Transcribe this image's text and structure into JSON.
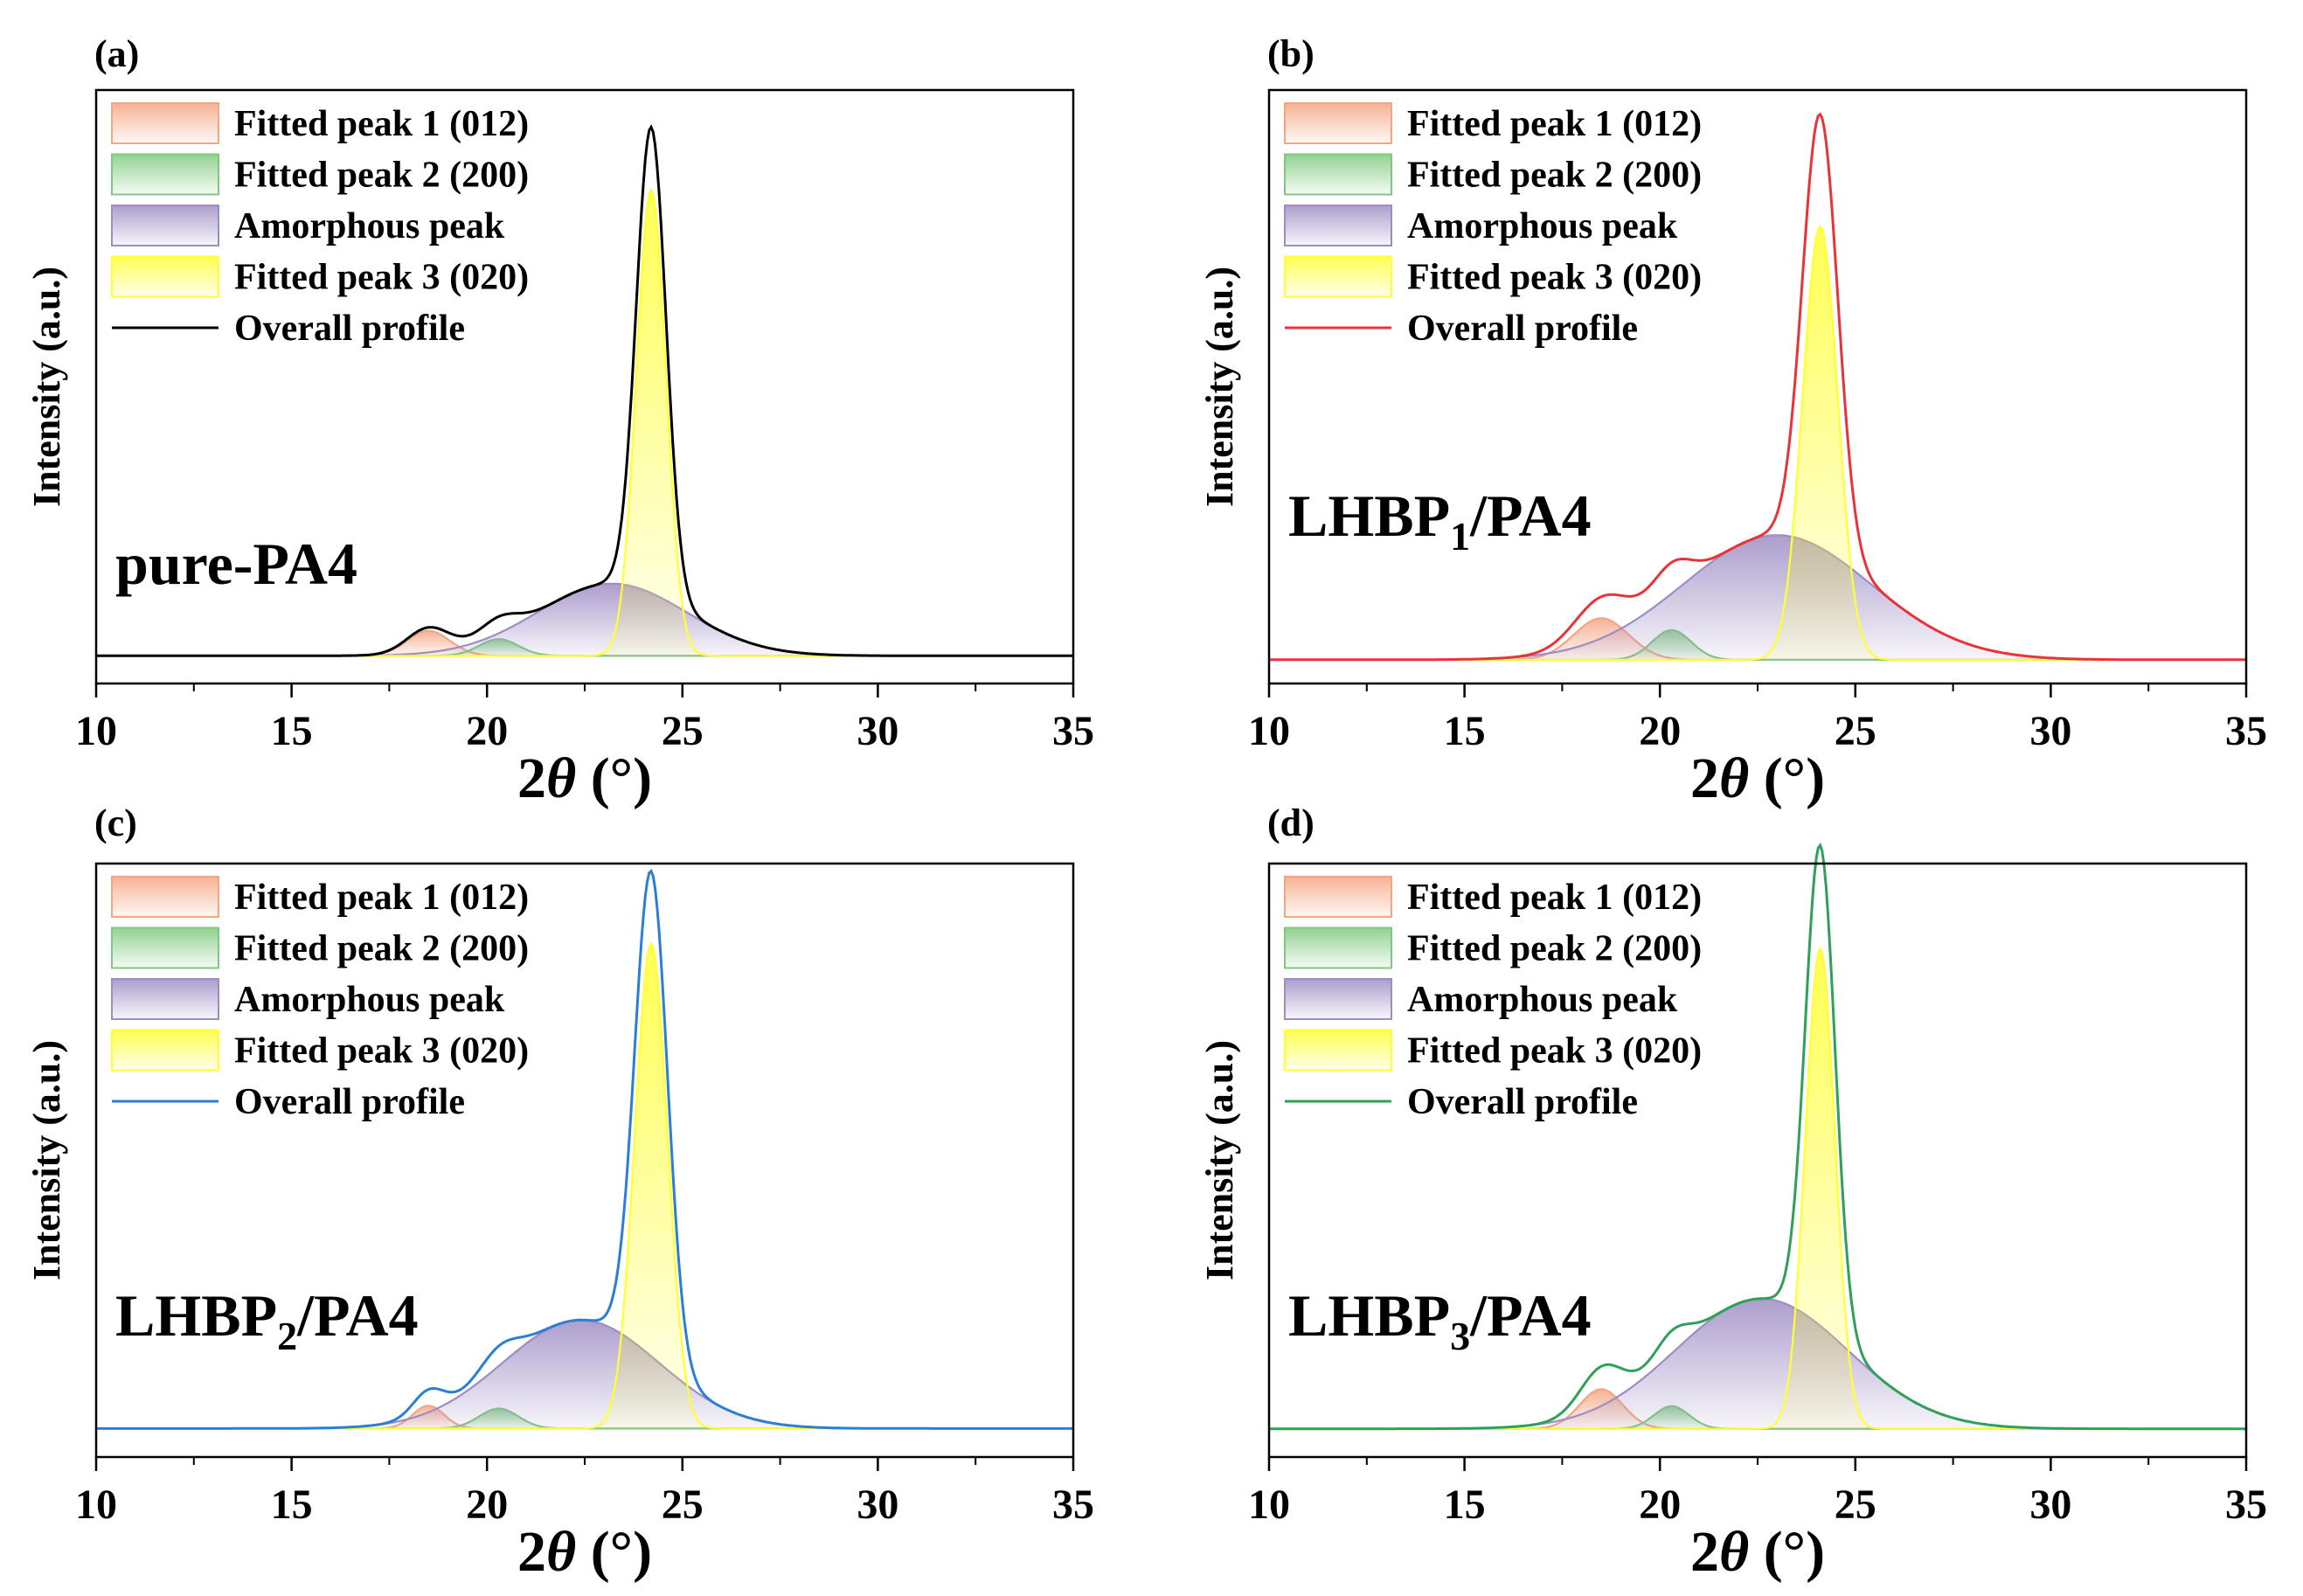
{
  "figure": {
    "xlabel_prefix": "2",
    "xlabel_theta": "θ",
    "xlabel_suffix": " (°)",
    "ylabel": "Intensity (a.u.)"
  },
  "legend_items": [
    {
      "key": "p1",
      "label": "Fitted peak 1 (012)",
      "color": "#f4a582"
    },
    {
      "key": "p2",
      "label": "Fitted peak 2 (200)",
      "color": "#7fc97f"
    },
    {
      "key": "am",
      "label": "Amorphous peak",
      "color": "#9e8cc4"
    },
    {
      "key": "p3",
      "label": "Fitted peak 3 (020)",
      "color": "#ffff33"
    },
    {
      "key": "ov",
      "label": "Overall profile",
      "color": null
    }
  ],
  "chart_data": [
    {
      "type": "area",
      "panel_label": "(a)",
      "sample": {
        "main": "pure-PA4",
        "sub": "",
        "rest": ""
      },
      "xlabel": "2θ (°)",
      "ylabel": "Intensity (a.u.)",
      "xlim": [
        10,
        35
      ],
      "ylim": [
        0,
        1.07
      ],
      "xticks": [
        10,
        15,
        20,
        25,
        30,
        35
      ],
      "profile_color": "#000000",
      "baseline": 0.05,
      "components": {
        "p1": {
          "center": 18.5,
          "height": 0.045,
          "width": 0.55
        },
        "p2": {
          "center": 20.3,
          "height": 0.03,
          "width": 0.5
        },
        "am": {
          "center": 23.2,
          "height": 0.13,
          "width": 1.9
        },
        "p3": {
          "center": 24.2,
          "height": 0.84,
          "width": 0.38
        }
      }
    },
    {
      "type": "area",
      "panel_label": "(b)",
      "sample": {
        "main": "LHBP",
        "sub": "1",
        "rest": "/PA4"
      },
      "xlabel": "2θ (°)",
      "ylabel": "Intensity (a.u.)",
      "xlim": [
        10,
        35
      ],
      "ylim": [
        0,
        1.0
      ],
      "xticks": [
        10,
        15,
        20,
        25,
        30,
        35
      ],
      "profile_color": "#e8333a",
      "baseline": 0.04,
      "components": {
        "p1": {
          "center": 18.5,
          "height": 0.07,
          "width": 0.7
        },
        "p2": {
          "center": 20.3,
          "height": 0.05,
          "width": 0.5
        },
        "am": {
          "center": 23.0,
          "height": 0.21,
          "width": 2.4
        },
        "p3": {
          "center": 24.1,
          "height": 0.73,
          "width": 0.45
        }
      }
    },
    {
      "type": "area",
      "panel_label": "(c)",
      "sample": {
        "main": "LHBP",
        "sub": "2",
        "rest": "/PA4"
      },
      "xlabel": "2θ (°)",
      "ylabel": "Intensity (a.u.)",
      "xlim": [
        10,
        35
      ],
      "ylim": [
        0,
        1.04
      ],
      "xticks": [
        10,
        15,
        20,
        25,
        30,
        35
      ],
      "profile_color": "#2a7fd4",
      "baseline": 0.05,
      "components": {
        "p1": {
          "center": 18.5,
          "height": 0.04,
          "width": 0.4
        },
        "p2": {
          "center": 20.3,
          "height": 0.035,
          "width": 0.5
        },
        "am": {
          "center": 22.4,
          "height": 0.19,
          "width": 2.0
        },
        "p3": {
          "center": 24.2,
          "height": 0.85,
          "width": 0.42
        }
      }
    },
    {
      "type": "area",
      "panel_label": "(d)",
      "sample": {
        "main": "LHBP",
        "sub": "3",
        "rest": "/PA4"
      },
      "xlabel": "2θ (°)",
      "ylabel": "Intensity (a.u.)",
      "xlim": [
        10,
        35
      ],
      "ylim": [
        0,
        1.05
      ],
      "xticks": [
        10,
        15,
        20,
        25,
        30,
        35
      ],
      "profile_color": "#2ea058",
      "baseline": 0.05,
      "components": {
        "p1": {
          "center": 18.5,
          "height": 0.07,
          "width": 0.55
        },
        "p2": {
          "center": 20.3,
          "height": 0.04,
          "width": 0.45
        },
        "am": {
          "center": 22.6,
          "height": 0.23,
          "width": 2.2
        },
        "p3": {
          "center": 24.1,
          "height": 0.85,
          "width": 0.38
        }
      }
    }
  ]
}
